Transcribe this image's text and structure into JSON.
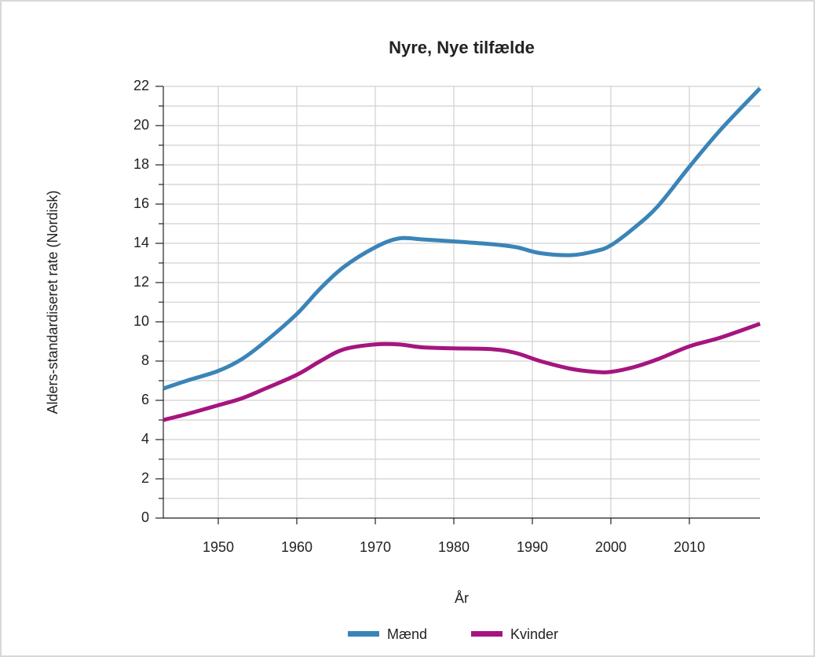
{
  "chart_data": {
    "type": "line",
    "title": "Nyre, Nye tilfælde",
    "x_label": "År",
    "y_label": "Alders-standardiseret rate (Nordisk)",
    "x": [
      1943,
      1946,
      1950,
      1953,
      1956,
      1960,
      1963,
      1966,
      1970,
      1973,
      1976,
      1980,
      1985,
      1988,
      1991,
      1995,
      1998,
      2000,
      2003,
      2006,
      2010,
      2014,
      2019
    ],
    "series": [
      {
        "name": "Mænd",
        "color": "#3a84b8",
        "values": [
          6.6,
          7.0,
          7.5,
          8.1,
          9.0,
          10.4,
          11.7,
          12.8,
          13.8,
          14.25,
          14.2,
          14.1,
          13.95,
          13.8,
          13.5,
          13.4,
          13.6,
          13.9,
          14.8,
          15.9,
          17.9,
          19.8,
          21.9
        ]
      },
      {
        "name": "Kvinder",
        "color": "#a5157f",
        "values": [
          5.0,
          5.3,
          5.75,
          6.1,
          6.6,
          7.3,
          8.0,
          8.6,
          8.85,
          8.85,
          8.7,
          8.65,
          8.6,
          8.4,
          8.0,
          7.6,
          7.45,
          7.45,
          7.7,
          8.1,
          8.75,
          9.2,
          9.9
        ]
      }
    ],
    "xlim": [
      1943,
      2019
    ],
    "xticks": [
      1950,
      1960,
      1970,
      1980,
      1990,
      2000,
      2010
    ],
    "ylim": [
      0,
      22
    ],
    "yticks": [
      0,
      2,
      4,
      6,
      8,
      10,
      12,
      14,
      16,
      18,
      20,
      22
    ],
    "minor_yticks": [
      1,
      3,
      5,
      7,
      9,
      11,
      13,
      15,
      17,
      19,
      21
    ],
    "grid": true,
    "legend": "bottom"
  }
}
